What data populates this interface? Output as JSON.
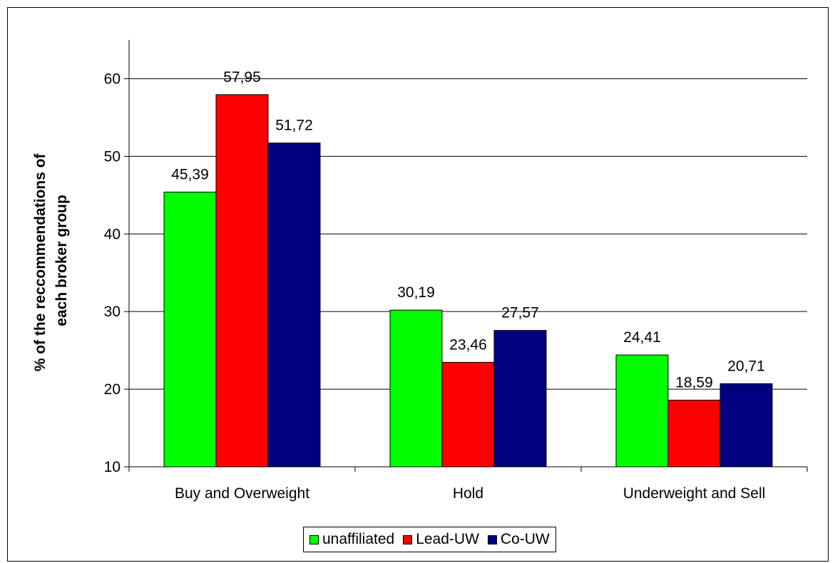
{
  "chart_data": {
    "type": "bar",
    "categories": [
      "Buy and Overweight",
      "Hold",
      "Underweight and Sell"
    ],
    "series": [
      {
        "name": "unaffiliated",
        "color": "#00ff00",
        "values": [
          45.39,
          30.19,
          24.41
        ],
        "labels": [
          "45,39",
          "30,19",
          "24,41"
        ]
      },
      {
        "name": "Lead-UW",
        "color": "#ff0000",
        "values": [
          57.95,
          23.46,
          18.59
        ],
        "labels": [
          "57,95",
          "23,46",
          "18,59"
        ]
      },
      {
        "name": "Co-UW",
        "color": "#000080",
        "values": [
          51.72,
          27.57,
          20.71
        ],
        "labels": [
          "51,72",
          "27,57",
          "20,71"
        ]
      }
    ],
    "ylabel": "% of the reccommendations of each broker group",
    "ylabel_lines": [
      "% of the reccommendations of",
      "each broker group"
    ],
    "ylim": [
      10,
      65
    ],
    "yticks": [
      10,
      20,
      30,
      40,
      50,
      60
    ],
    "grid": true,
    "legend_position": "bottom"
  }
}
